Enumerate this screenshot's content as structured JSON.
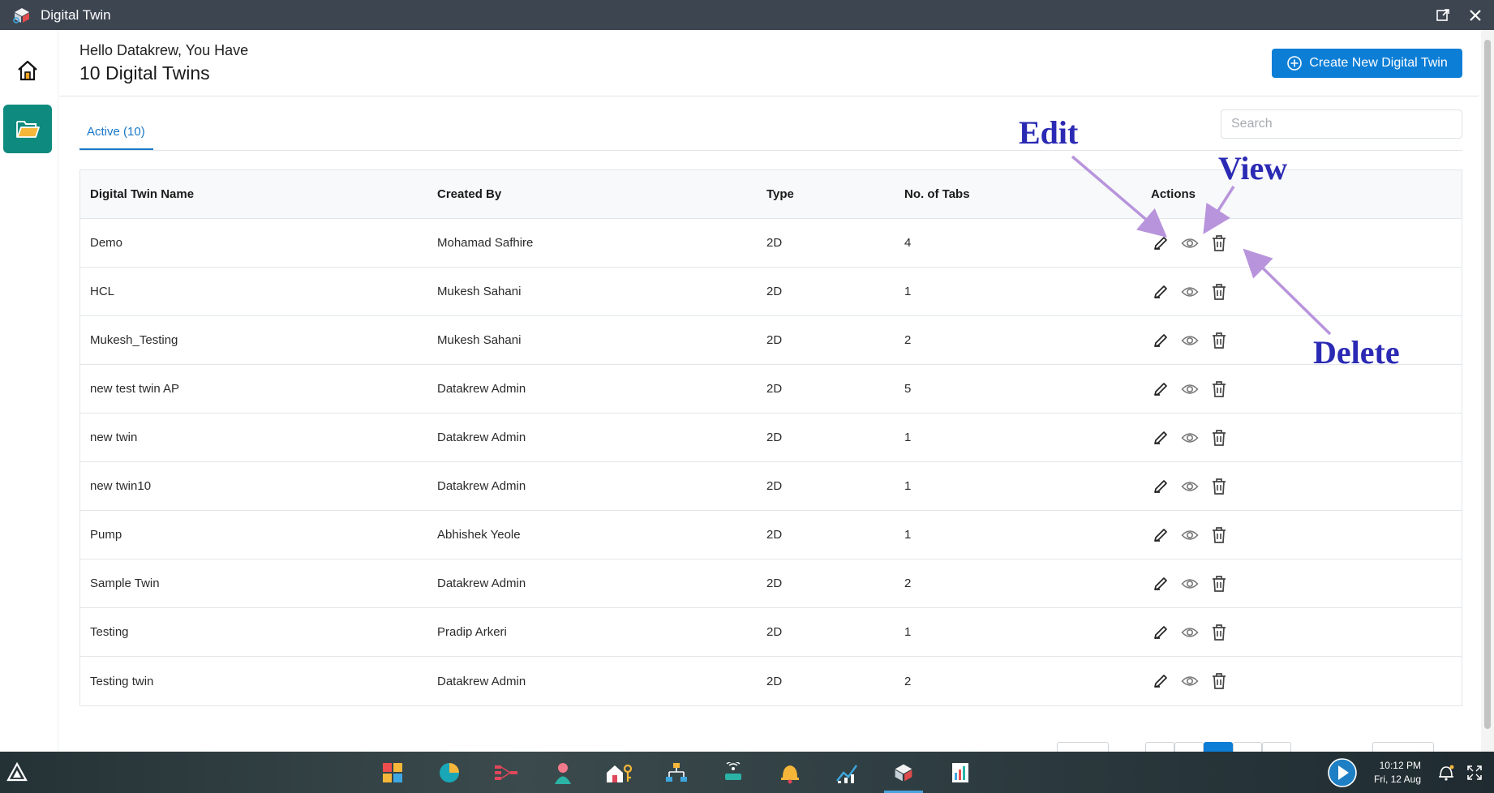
{
  "window": {
    "title": "Digital Twin"
  },
  "header": {
    "greeting": "Hello Datakrew, You Have",
    "count_title": "10 Digital Twins",
    "create_button_label": "Create New Digital Twin"
  },
  "tabs": {
    "active_label": "Active (10)"
  },
  "search": {
    "placeholder": "Search"
  },
  "table": {
    "columns": [
      "Digital Twin Name",
      "Created By",
      "Type",
      "No. of Tabs",
      "Actions"
    ],
    "rows": [
      {
        "name": "Demo",
        "created_by": "Mohamad Safhire",
        "type": "2D",
        "tabs": "4"
      },
      {
        "name": "HCL",
        "created_by": "Mukesh Sahani",
        "type": "2D",
        "tabs": "1"
      },
      {
        "name": "Mukesh_Testing",
        "created_by": "Mukesh Sahani",
        "type": "2D",
        "tabs": "2"
      },
      {
        "name": "new test twin AP",
        "created_by": "Datakrew Admin",
        "type": "2D",
        "tabs": "5"
      },
      {
        "name": "new twin",
        "created_by": "Datakrew Admin",
        "type": "2D",
        "tabs": "1"
      },
      {
        "name": "new twin10",
        "created_by": "Datakrew Admin",
        "type": "2D",
        "tabs": "1"
      },
      {
        "name": "Pump",
        "created_by": "Abhishek Yeole",
        "type": "2D",
        "tabs": "1"
      },
      {
        "name": "Sample Twin",
        "created_by": "Datakrew Admin",
        "type": "2D",
        "tabs": "2"
      },
      {
        "name": "Testing",
        "created_by": "Pradip Arkeri",
        "type": "2D",
        "tabs": "1"
      },
      {
        "name": "Testing twin",
        "created_by": "Datakrew Admin",
        "type": "2D",
        "tabs": "2"
      }
    ]
  },
  "annotations": {
    "edit": "Edit",
    "view": "View",
    "delete": "Delete"
  },
  "taskbar": {
    "time": "10:12 PM",
    "date": "Fri, 12 Aug"
  },
  "colors": {
    "primary": "#0c7ed6",
    "sidebar_active": "#0e8a7e",
    "titlebar": "#3c4550",
    "annotation_text": "#2b2ab4",
    "annotation_arrow": "#b894dc"
  }
}
